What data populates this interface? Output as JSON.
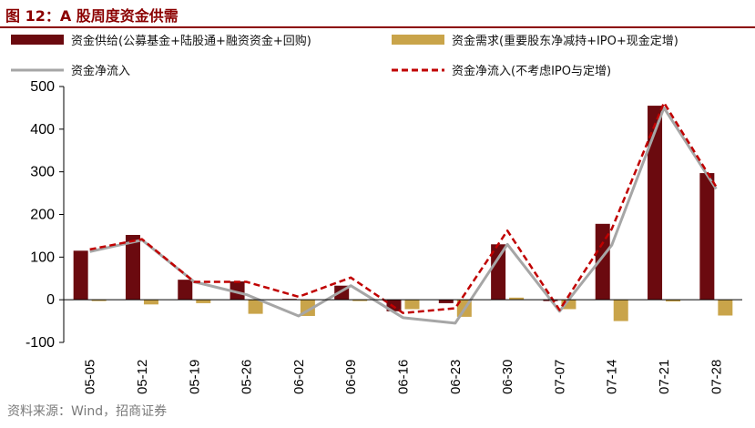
{
  "header": {
    "title": "图 12：A 股周度资金供需"
  },
  "footer": {
    "source": "资料来源：Wind，招商证券"
  },
  "colors": {
    "supply": "#6B0A0F",
    "demand": "#C9A44A",
    "net": "#A6A6A6",
    "net_ex": "#C00000",
    "title": "#8B0000"
  },
  "chart_data": {
    "type": "bar",
    "categories": [
      "05-05",
      "05-12",
      "05-19",
      "05-26",
      "06-02",
      "06-09",
      "06-16",
      "06-23",
      "06-30",
      "07-07",
      "07-14",
      "07-21",
      "07-28"
    ],
    "ylim": [
      -100,
      500
    ],
    "yticks": [
      500,
      400,
      300,
      200,
      100,
      0,
      -100
    ],
    "grid": false,
    "legend_position": "top",
    "series": [
      {
        "name": "资金供给(公募基金+陆股通+融资资金+回购)",
        "kind": "bar",
        "values": [
          115,
          152,
          47,
          43,
          2,
          33,
          -27,
          -8,
          130,
          -3,
          178,
          455,
          297
        ]
      },
      {
        "name": "资金需求(重要股东净减持+IPO+现金定增)",
        "kind": "bar",
        "values": [
          -3,
          -11,
          -8,
          -33,
          -38,
          -3,
          -22,
          -40,
          5,
          -22,
          -50,
          -4,
          -37
        ]
      },
      {
        "name": "资金净流入",
        "kind": "line",
        "values": [
          113,
          140,
          42,
          12,
          -38,
          33,
          -42,
          -55,
          130,
          -27,
          128,
          450,
          260
        ]
      },
      {
        "name": "资金净流入(不考虑IPO与定增)",
        "kind": "line-dashed",
        "values": [
          118,
          142,
          42,
          42,
          7,
          52,
          -31,
          -20,
          162,
          -24,
          166,
          462,
          265
        ]
      }
    ]
  }
}
